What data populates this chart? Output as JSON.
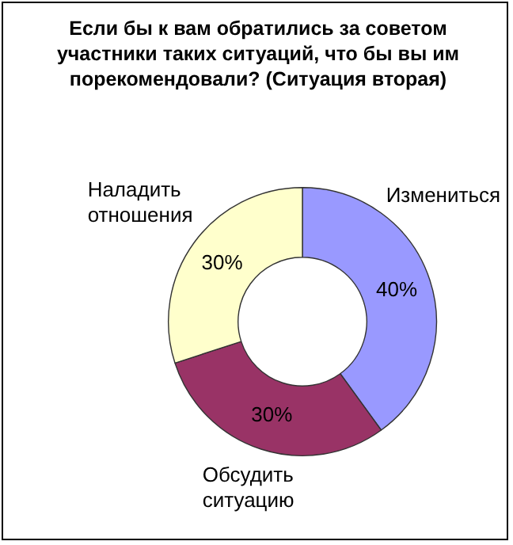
{
  "chart_data": {
    "type": "donut",
    "title": "Если бы к вам обратились за советом участники таких ситуаций, что бы вы им порекомендовали? (Ситуация вторая)",
    "categories": [
      "Измениться",
      "Обсудить ситуацию",
      "Наладить отношения"
    ],
    "values": [
      40,
      30,
      30
    ],
    "colors": [
      "#9999ff",
      "#993366",
      "#ffffcc"
    ],
    "value_labels": [
      "40%",
      "30%",
      "30%"
    ],
    "legend": false
  }
}
